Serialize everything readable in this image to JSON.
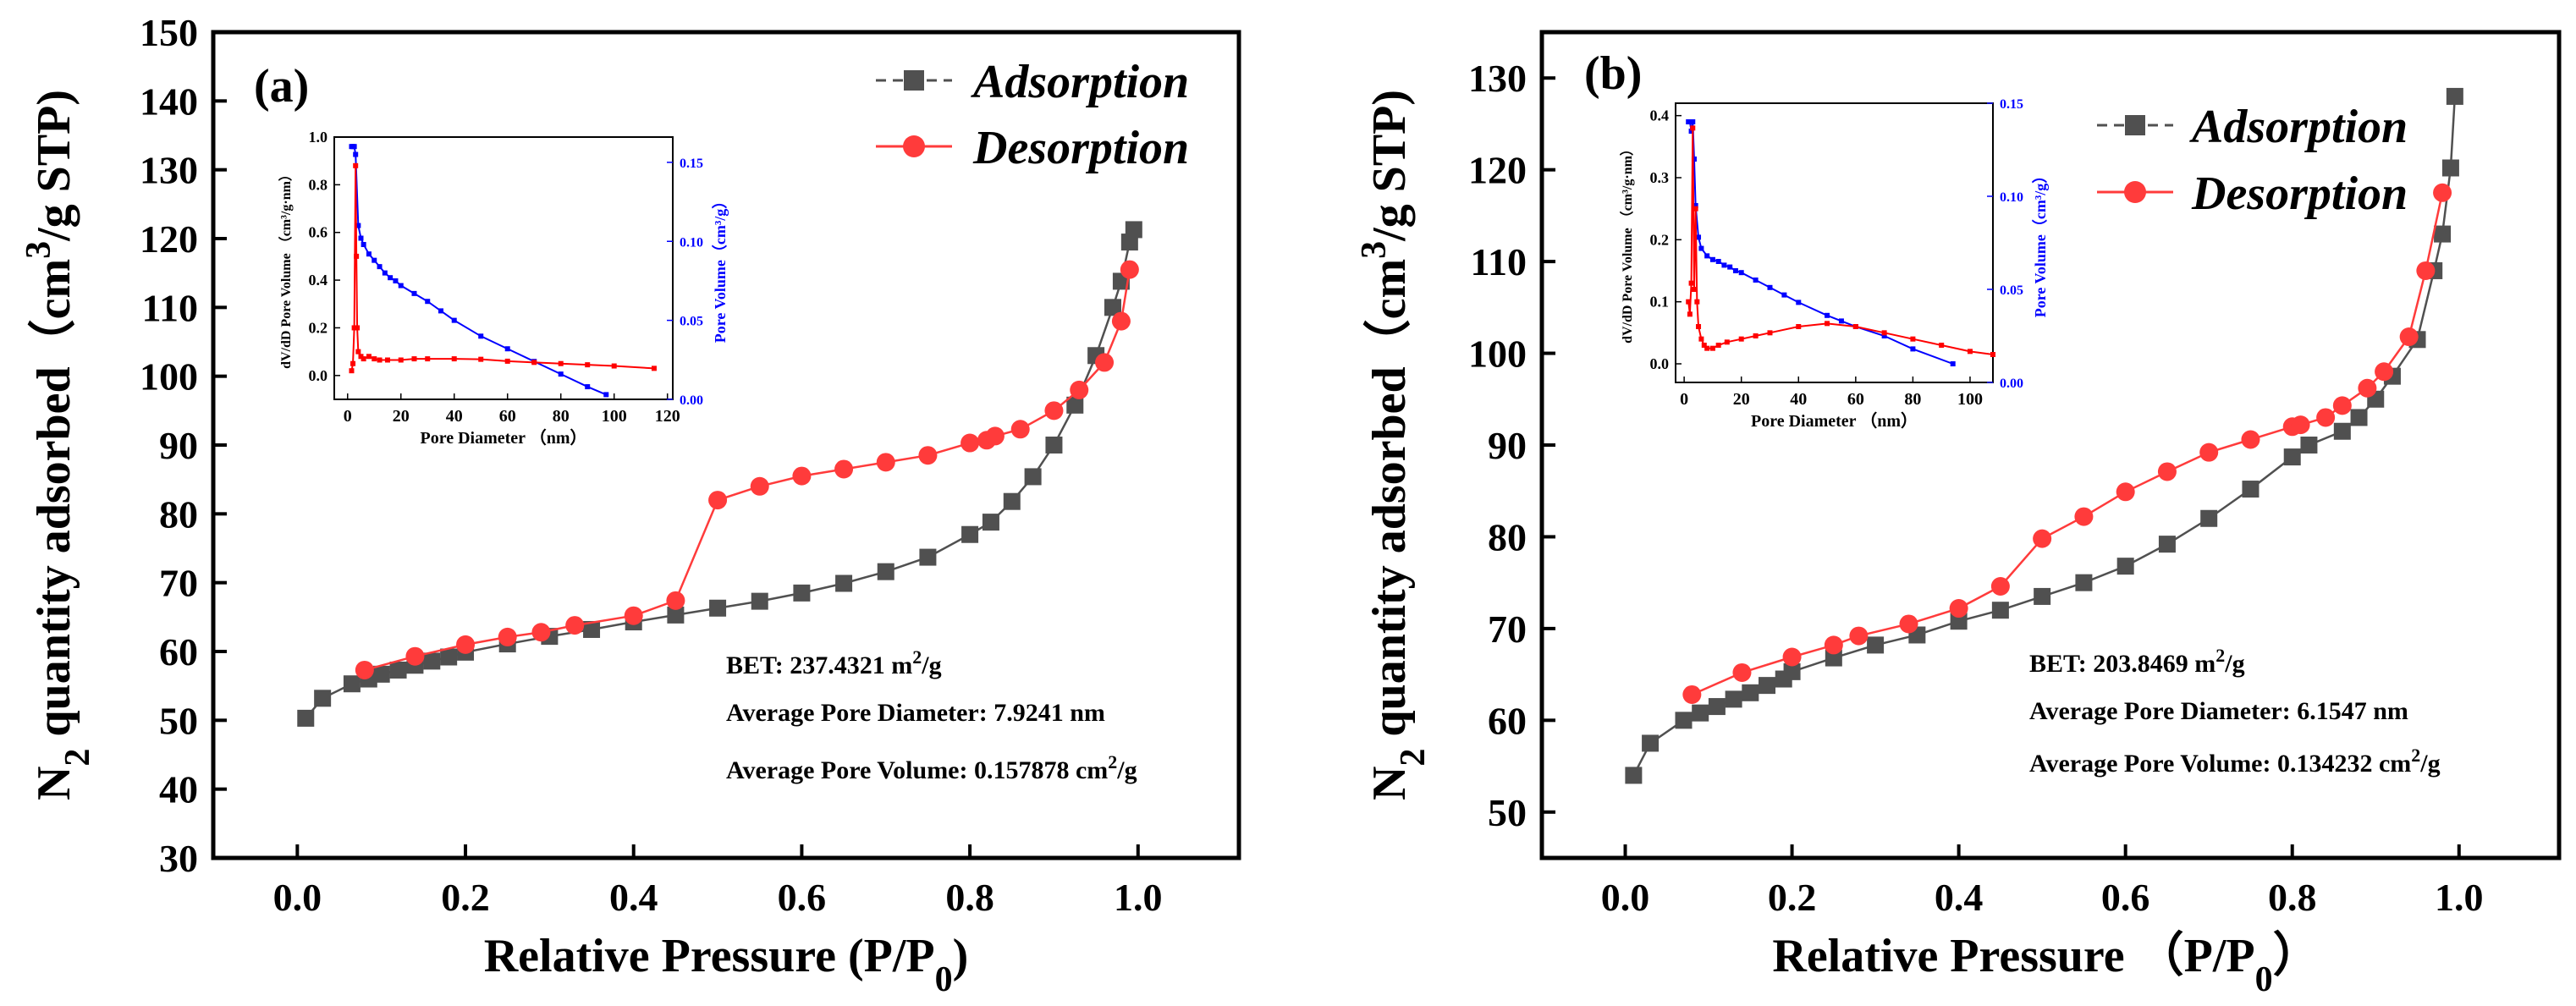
{
  "charts": [
    {
      "panel_label": "(a)",
      "type": "scatter",
      "title": "",
      "xlabel_main": "Relative Pressure (P/P",
      "xlabel_sub": "0",
      "xlabel_tail": ")",
      "ylabel_pre": "N",
      "ylabel_sub": "2",
      "ylabel_mid": " quantity adsorbed（cm",
      "ylabel_sup": "3",
      "ylabel_post": "/g STP)",
      "xlim": [
        -0.1,
        1.12
      ],
      "ylim": [
        30,
        150
      ],
      "xticks": [
        "0.0",
        "0.2",
        "0.4",
        "0.6",
        "0.8",
        "1.0"
      ],
      "xtick_values": [
        0,
        0.2,
        0.4,
        0.6,
        0.8,
        1.0
      ],
      "yticks": [
        "30",
        "40",
        "50",
        "60",
        "70",
        "80",
        "90",
        "100",
        "110",
        "120",
        "130",
        "140",
        "150"
      ],
      "ytick_values": [
        30,
        40,
        50,
        60,
        70,
        80,
        90,
        100,
        110,
        120,
        130,
        140,
        150
      ],
      "legend": {
        "position": "top-right",
        "adsorption": "Adsorption",
        "desorption": "Desorption"
      },
      "annotations": {
        "bet_label": "BET: 237.4321 m",
        "bet_sup": "2",
        "bet_tail": "/g",
        "diameter": "Average Pore Diameter: 7.9241 nm",
        "volume_label": "Average Pore Volume: 0.157878 cm",
        "volume_sup": "2",
        "volume_tail": "/g"
      },
      "series": [
        {
          "name": "Adsorption",
          "color": "#505050",
          "marker": "square",
          "x": [
            0.01,
            0.03,
            0.065,
            0.085,
            0.1,
            0.12,
            0.14,
            0.16,
            0.18,
            0.2,
            0.25,
            0.3,
            0.35,
            0.4,
            0.45,
            0.5,
            0.55,
            0.6,
            0.65,
            0.7,
            0.75,
            0.8,
            0.825,
            0.85,
            0.875,
            0.9,
            0.925,
            0.95,
            0.97,
            0.98,
            0.99,
            0.995
          ],
          "y": [
            50.3,
            53.2,
            55.3,
            56.0,
            56.7,
            57.3,
            58.0,
            58.6,
            59.2,
            59.9,
            61.1,
            62.2,
            63.2,
            64.3,
            65.3,
            66.3,
            67.3,
            68.5,
            69.9,
            71.6,
            73.7,
            77.0,
            78.8,
            81.8,
            85.4,
            90.0,
            95.8,
            103.0,
            110.0,
            113.8,
            119.5,
            121.3
          ]
        },
        {
          "name": "Desorption",
          "color": "#ff3b3b",
          "marker": "circle",
          "x": [
            0.08,
            0.14,
            0.2,
            0.25,
            0.29,
            0.33,
            0.4,
            0.45,
            0.5,
            0.55,
            0.6,
            0.65,
            0.7,
            0.75,
            0.8,
            0.82,
            0.83,
            0.86,
            0.9,
            0.93,
            0.96,
            0.98,
            0.99
          ],
          "y": [
            57.3,
            59.3,
            61.0,
            62.1,
            62.8,
            63.8,
            65.2,
            67.4,
            82.0,
            84.0,
            85.5,
            86.5,
            87.5,
            88.5,
            90.3,
            90.7,
            91.3,
            92.3,
            95.0,
            98.0,
            102.0,
            108.0,
            115.5
          ]
        }
      ],
      "inset": {
        "xlabel": "Pore Diameter （nm）",
        "ylabel_left": "dV/dD Pore Volume （cm³/g·nm）",
        "ylabel_right": "Pore Volume（cm³/g）",
        "xlim": [
          -5,
          122
        ],
        "ylim_left": [
          -0.1,
          1.0
        ],
        "ylim_right": [
          0,
          0.166
        ],
        "xticks": [
          "0",
          "20",
          "40",
          "60",
          "80",
          "100",
          "120"
        ],
        "xtick_values": [
          0,
          20,
          40,
          60,
          80,
          100,
          120
        ],
        "yticks_left": [
          "0.0",
          "0.2",
          "0.4",
          "0.6",
          "0.8",
          "1.0"
        ],
        "ytick_values_left": [
          0,
          0.2,
          0.4,
          0.6,
          0.8,
          1.0
        ],
        "yticks_right": [
          "0.00",
          "0.05",
          "0.10",
          "0.15"
        ],
        "ytick_values_right": [
          0,
          0.05,
          0.1,
          0.15
        ],
        "dvdd": {
          "name": "dV/dD Pore Volume",
          "color": "#ff0000",
          "x": [
            1.5,
            2.0,
            2.5,
            3.0,
            3.3,
            3.6,
            4.0,
            5.0,
            6.0,
            8.0,
            10,
            12,
            15,
            20,
            25,
            30,
            40,
            50,
            60,
            70,
            80,
            90,
            100,
            115
          ],
          "y": [
            0.02,
            0.05,
            0.2,
            0.88,
            0.5,
            0.2,
            0.1,
            0.08,
            0.07,
            0.08,
            0.07,
            0.065,
            0.065,
            0.065,
            0.07,
            0.07,
            0.07,
            0.068,
            0.06,
            0.055,
            0.05,
            0.045,
            0.04,
            0.03
          ]
        },
        "cumulative": {
          "name": "Pore Volume",
          "color": "#0000ff",
          "x": [
            1.5,
            2,
            2.5,
            3,
            4,
            5,
            6,
            8,
            10,
            12,
            14,
            16,
            18,
            20,
            25,
            30,
            35,
            40,
            50,
            60,
            70,
            80,
            90,
            97
          ],
          "y": [
            0.16,
            0.16,
            0.16,
            0.155,
            0.11,
            0.102,
            0.098,
            0.092,
            0.088,
            0.084,
            0.08,
            0.077,
            0.075,
            0.072,
            0.067,
            0.062,
            0.056,
            0.05,
            0.04,
            0.032,
            0.024,
            0.016,
            0.008,
            0.003
          ]
        }
      }
    },
    {
      "panel_label": "(b)",
      "type": "scatter",
      "title": "",
      "xlabel_main": "Relative Pressure （P/P",
      "xlabel_sub": "0",
      "xlabel_tail": "）",
      "ylabel_pre": "N",
      "ylabel_sub": "2",
      "ylabel_mid": " quantity adsorbed（cm",
      "ylabel_sup": "3",
      "ylabel_post": "/g STP)",
      "xlim": [
        -0.1,
        1.12
      ],
      "ylim": [
        45,
        135
      ],
      "xticks": [
        "0.0",
        "0.2",
        "0.4",
        "0.6",
        "0.8",
        "1.0"
      ],
      "xtick_values": [
        0,
        0.2,
        0.4,
        0.6,
        0.8,
        1.0
      ],
      "yticks": [
        "50",
        "60",
        "70",
        "80",
        "90",
        "100",
        "110",
        "120",
        "130"
      ],
      "ytick_values": [
        50,
        60,
        70,
        80,
        90,
        100,
        110,
        120,
        130
      ],
      "legend": {
        "position": "top-right",
        "adsorption": "Adsorption",
        "desorption": "Desorption"
      },
      "annotations": {
        "bet_label": "BET: 203.8469 m",
        "bet_sup": "2",
        "bet_tail": "/g",
        "diameter": "Average Pore Diameter: 6.1547 nm",
        "volume_label": "Average Pore Volume: 0.134232 cm",
        "volume_sup": "2",
        "volume_tail": "/g"
      },
      "series": [
        {
          "name": "Adsorption",
          "color": "#505050",
          "marker": "square",
          "x": [
            0.01,
            0.03,
            0.07,
            0.09,
            0.11,
            0.13,
            0.15,
            0.17,
            0.19,
            0.2,
            0.25,
            0.3,
            0.35,
            0.4,
            0.45,
            0.5,
            0.55,
            0.6,
            0.65,
            0.7,
            0.75,
            0.8,
            0.82,
            0.86,
            0.88,
            0.9,
            0.92,
            0.95,
            0.97,
            0.98,
            0.99,
            0.995
          ],
          "y": [
            54.0,
            57.5,
            60.0,
            60.8,
            61.5,
            62.3,
            63.0,
            63.8,
            64.5,
            65.3,
            66.8,
            68.2,
            69.3,
            70.8,
            72.0,
            73.5,
            75.0,
            76.8,
            79.2,
            82.0,
            85.2,
            88.7,
            90.0,
            91.5,
            93.0,
            95.0,
            97.5,
            101.5,
            109.0,
            113.0,
            120.2,
            128.0
          ]
        },
        {
          "name": "Desorption",
          "color": "#ff3b3b",
          "marker": "circle",
          "x": [
            0.08,
            0.14,
            0.2,
            0.25,
            0.28,
            0.34,
            0.4,
            0.45,
            0.5,
            0.55,
            0.6,
            0.65,
            0.7,
            0.75,
            0.8,
            0.81,
            0.84,
            0.86,
            0.89,
            0.91,
            0.94,
            0.96,
            0.98
          ],
          "y": [
            62.8,
            65.2,
            66.9,
            68.2,
            69.2,
            70.5,
            72.2,
            74.6,
            79.8,
            82.2,
            84.9,
            87.1,
            89.2,
            90.6,
            92.0,
            92.2,
            93.0,
            94.3,
            96.2,
            98.0,
            101.8,
            109.0,
            117.5
          ]
        }
      ],
      "inset": {
        "xlabel": "Pore Diameter （nm）",
        "ylabel_left": "dV/dD Pore Volume （cm³/g·nm）",
        "ylabel_right": "Pore Volume（cm³/g）",
        "xlim": [
          -3,
          108
        ],
        "ylim_left": [
          -0.03,
          0.42
        ],
        "ylim_right": [
          0,
          0.15
        ],
        "xticks": [
          "0",
          "20",
          "40",
          "60",
          "80",
          "100"
        ],
        "xtick_values": [
          0,
          20,
          40,
          60,
          80,
          100
        ],
        "yticks_left": [
          "0.0",
          "0.1",
          "0.2",
          "0.3",
          "0.4"
        ],
        "ytick_values_left": [
          0,
          0.1,
          0.2,
          0.3,
          0.4
        ],
        "yticks_right": [
          "0.00",
          "0.05",
          "0.10",
          "0.15"
        ],
        "ytick_values_right": [
          0,
          0.05,
          0.1,
          0.15
        ],
        "dvdd": {
          "name": "dV/dD Pore Volume",
          "color": "#ff0000",
          "x": [
            1.5,
            2.0,
            2.5,
            3.0,
            3.5,
            4.0,
            4.5,
            5.0,
            6.0,
            7.0,
            8.0,
            10,
            12,
            15,
            20,
            25,
            30,
            40,
            50,
            60,
            70,
            80,
            90,
            100,
            108
          ],
          "y": [
            0.1,
            0.08,
            0.13,
            0.38,
            0.12,
            0.25,
            0.1,
            0.06,
            0.04,
            0.03,
            0.025,
            0.025,
            0.03,
            0.035,
            0.04,
            0.045,
            0.05,
            0.06,
            0.065,
            0.06,
            0.05,
            0.04,
            0.03,
            0.02,
            0.015
          ]
        },
        "cumulative": {
          "name": "Pore Volume",
          "color": "#0000ff",
          "x": [
            1.5,
            2,
            2.5,
            3,
            3.5,
            4,
            5,
            6,
            8,
            10,
            12,
            14,
            16,
            18,
            20,
            25,
            30,
            35,
            40,
            50,
            55,
            60,
            70,
            80,
            94
          ],
          "y": [
            0.14,
            0.14,
            0.135,
            0.14,
            0.12,
            0.095,
            0.078,
            0.072,
            0.068,
            0.066,
            0.065,
            0.063,
            0.062,
            0.06,
            0.059,
            0.055,
            0.051,
            0.047,
            0.043,
            0.036,
            0.033,
            0.03,
            0.025,
            0.018,
            0.01
          ]
        }
      }
    }
  ]
}
